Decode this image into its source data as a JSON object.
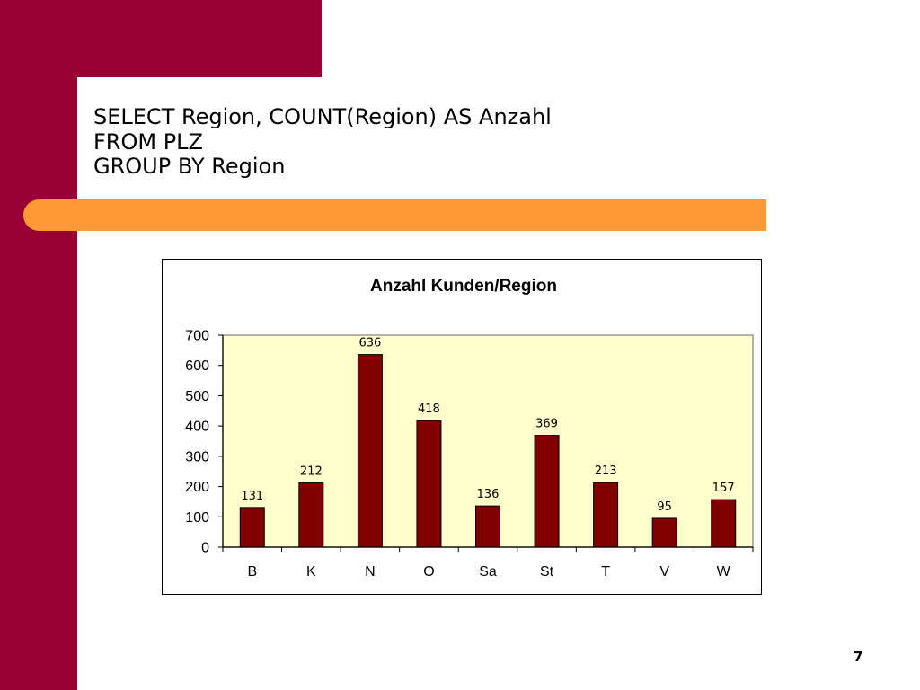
{
  "slide": {
    "title_lines": [
      "SELECT Region, COUNT(Region) AS Anzahl",
      "FROM PLZ",
      "GROUP BY Region"
    ],
    "page_number": "7"
  },
  "colors": {
    "brand": "#990033",
    "accent": "#ff9933",
    "plot_background": "#ffffcc",
    "bar_fill": "#800000"
  },
  "chart_data": {
    "type": "bar",
    "title": "Anzahl Kunden/Region",
    "categories": [
      "B",
      "K",
      "N",
      "O",
      "Sa",
      "St",
      "T",
      "V",
      "W"
    ],
    "values": [
      131,
      212,
      636,
      418,
      136,
      369,
      213,
      95,
      157
    ],
    "data_labels": [
      "131",
      "212",
      "636",
      "418",
      "136",
      "369",
      "213",
      "95",
      "157"
    ],
    "y_ticks": [
      "0",
      "100",
      "200",
      "300",
      "400",
      "500",
      "600",
      "700"
    ],
    "ylim": [
      0,
      700
    ],
    "xlabel": "",
    "ylabel": "",
    "grid": false,
    "legend": "none"
  }
}
